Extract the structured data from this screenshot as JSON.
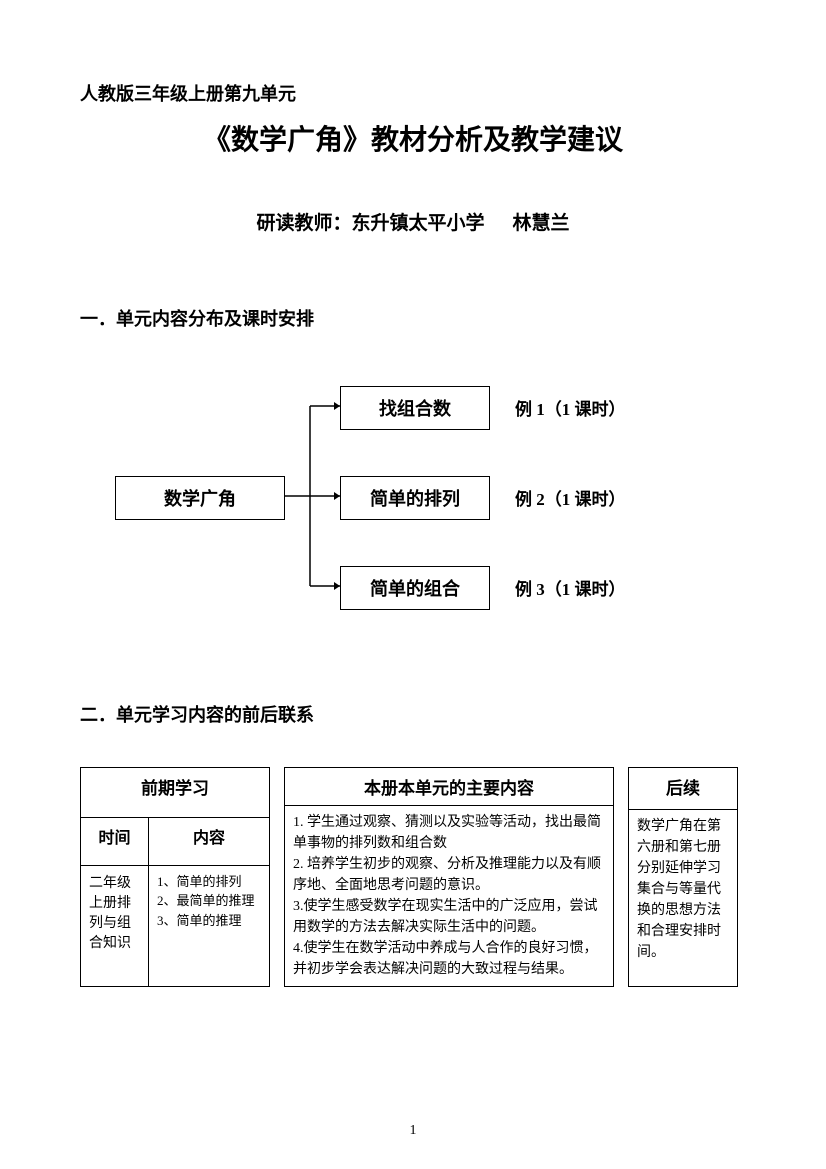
{
  "pretitle": "人教版三年级上册第九单元",
  "title": "《数学广角》教材分析及教学建议",
  "author_prefix": "研读教师：东升镇太平小学",
  "author_name": "林慧兰",
  "section1": "一．单元内容分布及课时安排",
  "diagram": {
    "root": "数学广角",
    "children": [
      {
        "label": "找组合数",
        "example": "例 1（1 课时）"
      },
      {
        "label": "简单的排列",
        "example": "例 2（1 课时）"
      },
      {
        "label": "简单的组合",
        "example": "例 3（1 课时）"
      }
    ],
    "line_color": "#000000",
    "line_width": 1.5
  },
  "section2": "二．单元学习内容的前后联系",
  "table1": {
    "header": "前期学习",
    "col_time": "时间",
    "col_content": "内容",
    "time_val": "二年级上册排列与组合知识",
    "content_val": "1、简单的排列\n2、最简单的推理\n3、简单的推理"
  },
  "table2": {
    "header": "本册本单元的主要内容",
    "body": "1. 学生通过观察、猜测以及实验等活动，找出最简单事物的排列数和组合数\n2. 培养学生初步的观察、分析及推理能力以及有顺序地、全面地思考问题的意识。\n3.使学生感受数学在现实生活中的广泛应用，尝试用数学的方法去解决实际生活中的问题。\n4.使学生在数学活动中养成与人合作的良好习惯，并初步学会表达解决问题的大致过程与结果。"
  },
  "table3": {
    "header": "后续",
    "body": "数学广角在第六册和第七册分别延伸学习集合与等量代换的思想方法和合理安排时间。"
  },
  "page_number": "1"
}
